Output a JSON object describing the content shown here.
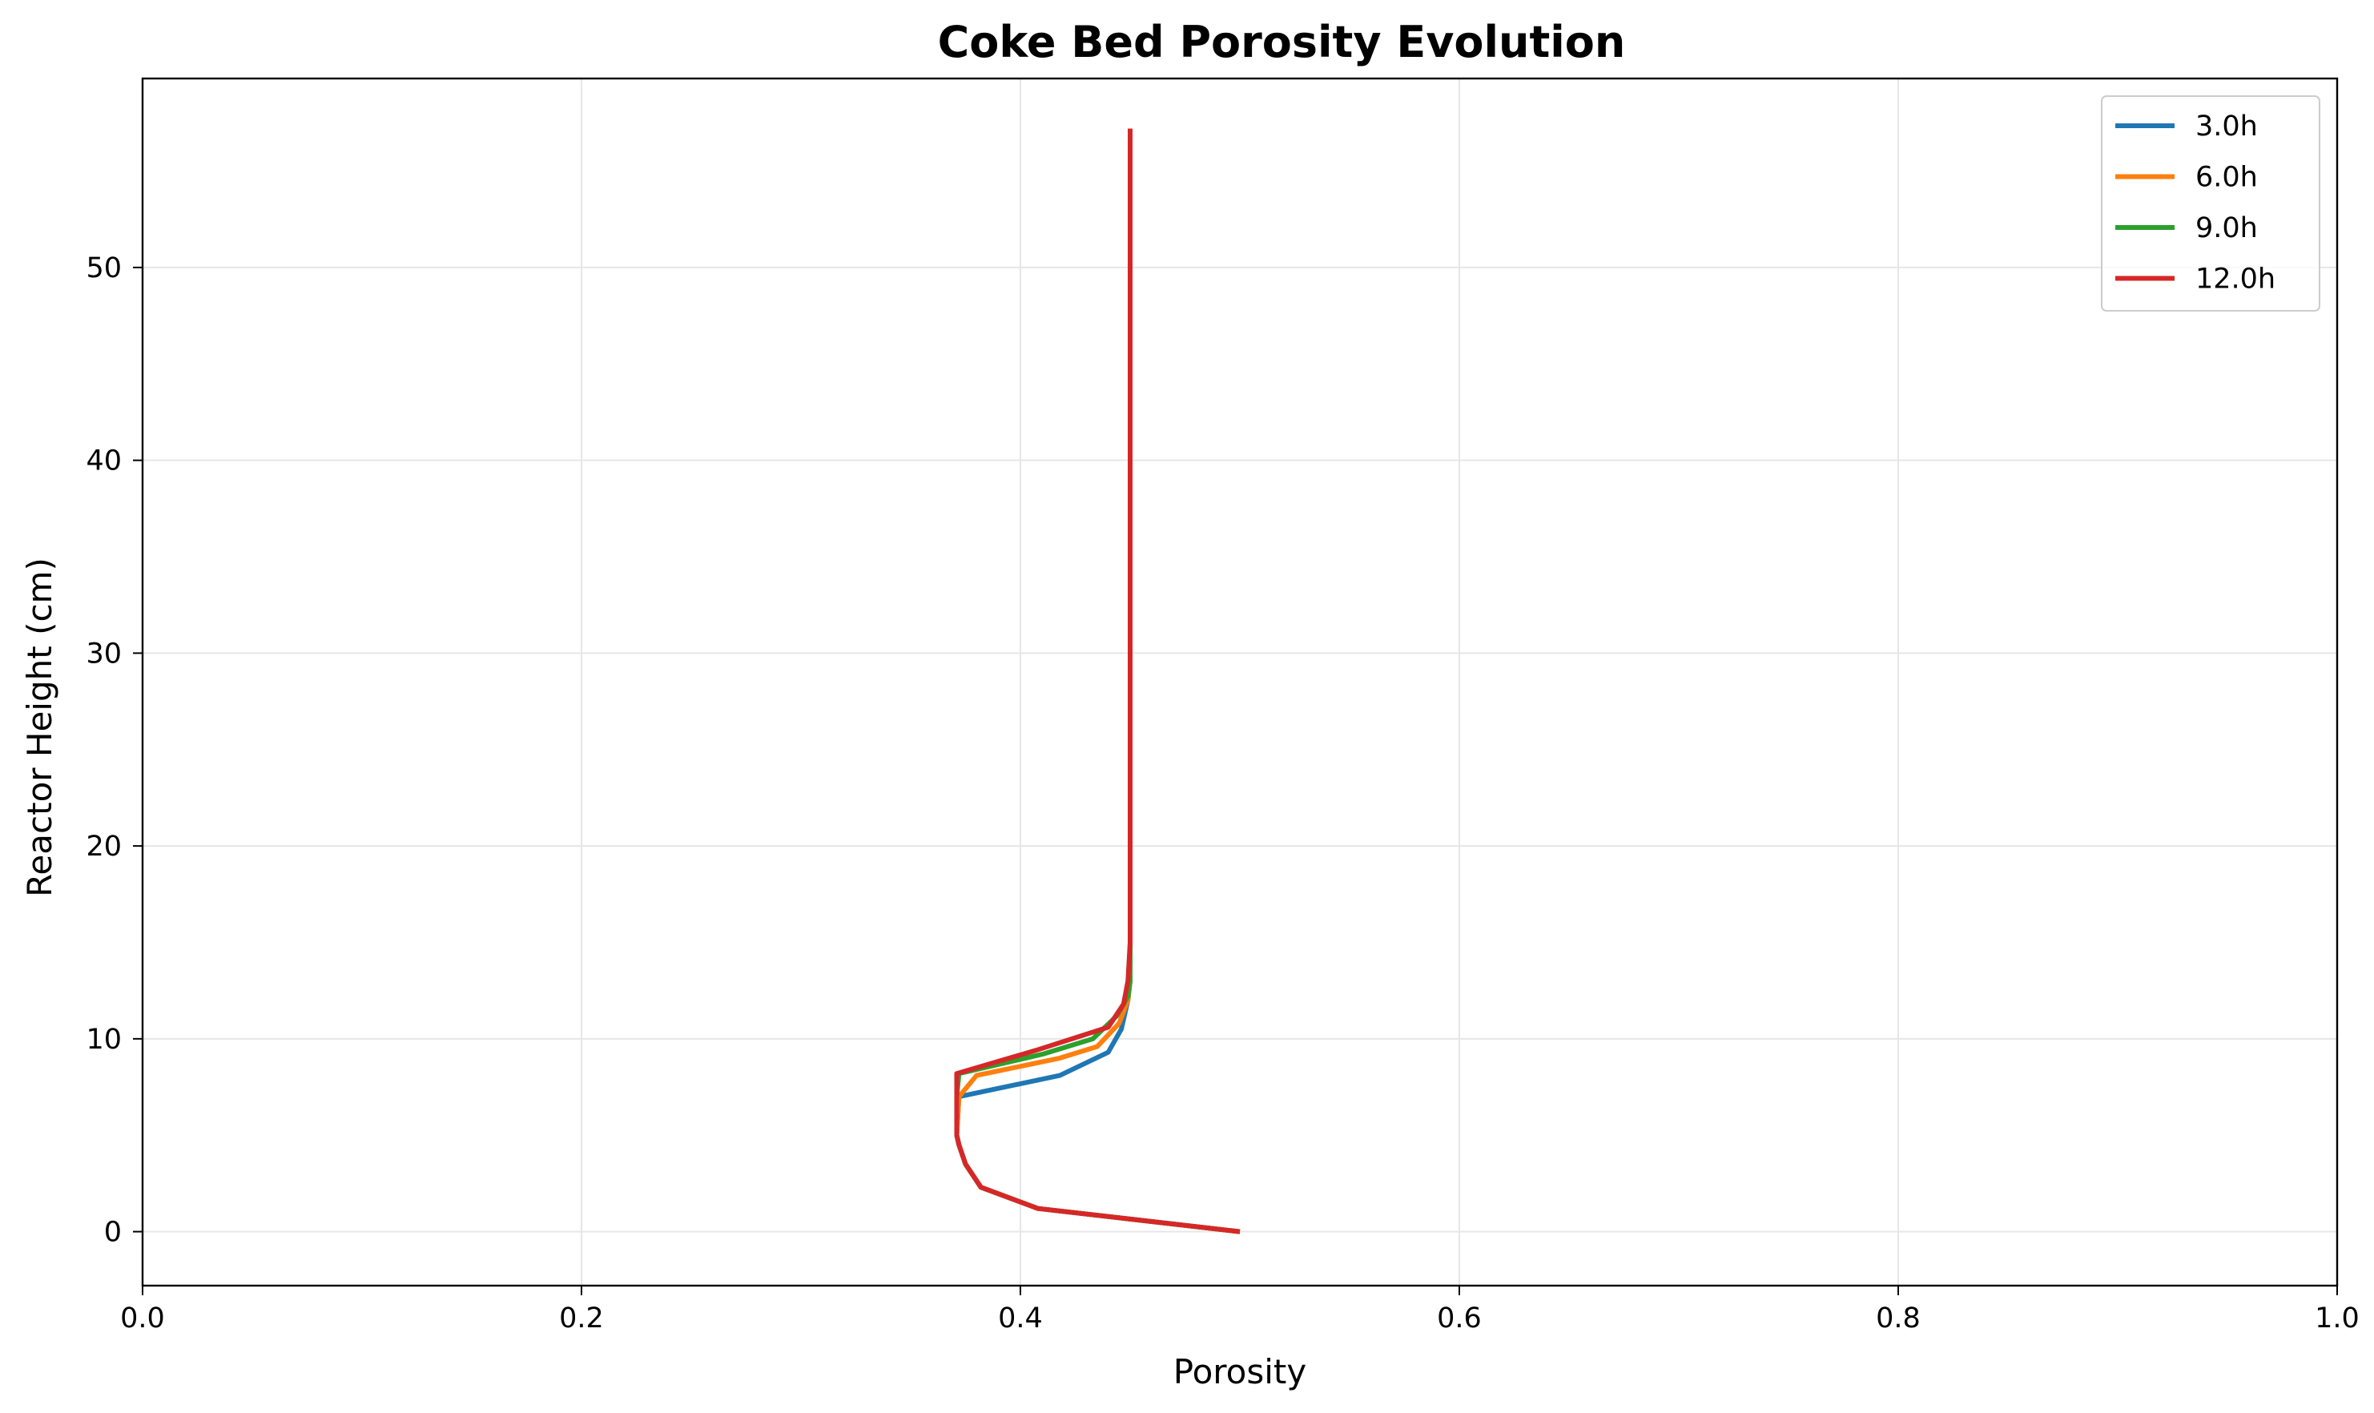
{
  "chart_data": {
    "type": "line",
    "title": "Coke Bed Porosity Evolution",
    "xlabel": "Porosity",
    "ylabel": "Reactor Height (cm)",
    "xlim": [
      0.0,
      1.0
    ],
    "ylim": [
      -2.8,
      59.8
    ],
    "xticks": [
      0.0,
      0.2,
      0.4,
      0.6,
      0.8,
      1.0
    ],
    "xtick_labels": [
      "0.0",
      "0.2",
      "0.4",
      "0.6",
      "0.8",
      "1.0"
    ],
    "yticks": [
      0,
      10,
      20,
      30,
      40,
      50
    ],
    "ytick_labels": [
      "0",
      "10",
      "20",
      "30",
      "40",
      "50"
    ],
    "grid": true,
    "legend_position": "top-right",
    "series": [
      {
        "name": "3.0h",
        "color": "#1f77b4",
        "x": [
          0.45,
          0.45,
          0.45,
          0.45,
          0.45,
          0.449,
          0.446,
          0.44,
          0.418,
          0.372,
          0.371,
          0.372,
          0.375,
          0.382,
          0.408,
          0.5
        ],
        "y": [
          57.2,
          40,
          20,
          15,
          13,
          12,
          10.5,
          9.3,
          8.1,
          7.0,
          5.0,
          4.5,
          3.5,
          2.3,
          1.2,
          0
        ]
      },
      {
        "name": "6.0h",
        "color": "#ff7f0e",
        "x": [
          0.45,
          0.45,
          0.45,
          0.45,
          0.45,
          0.449,
          0.445,
          0.435,
          0.418,
          0.38,
          0.372,
          0.371,
          0.372,
          0.375,
          0.382,
          0.408,
          0.5
        ],
        "y": [
          57.2,
          40,
          20,
          15,
          13,
          12,
          10.8,
          9.6,
          9.0,
          8.1,
          7.0,
          5.0,
          4.5,
          3.5,
          2.3,
          1.2,
          0
        ]
      },
      {
        "name": "9.0h",
        "color": "#2ca02c",
        "x": [
          0.45,
          0.45,
          0.45,
          0.45,
          0.45,
          0.449,
          0.444,
          0.433,
          0.41,
          0.372,
          0.371,
          0.371,
          0.372,
          0.375,
          0.382,
          0.408,
          0.5
        ],
        "y": [
          57.2,
          40,
          20,
          15,
          13,
          12.2,
          11.2,
          10.0,
          9.2,
          8.2,
          7.0,
          5.0,
          4.5,
          3.5,
          2.3,
          1.2,
          0
        ]
      },
      {
        "name": "12.0h",
        "color": "#d62728",
        "x": [
          0.45,
          0.45,
          0.45,
          0.45,
          0.449,
          0.447,
          0.44,
          0.407,
          0.371,
          0.371,
          0.371,
          0.372,
          0.375,
          0.382,
          0.408,
          0.5
        ],
        "y": [
          57.2,
          40,
          20,
          15,
          13,
          11.8,
          10.6,
          9.4,
          8.2,
          7.0,
          5.0,
          4.5,
          3.5,
          2.3,
          1.2,
          0
        ]
      }
    ]
  }
}
